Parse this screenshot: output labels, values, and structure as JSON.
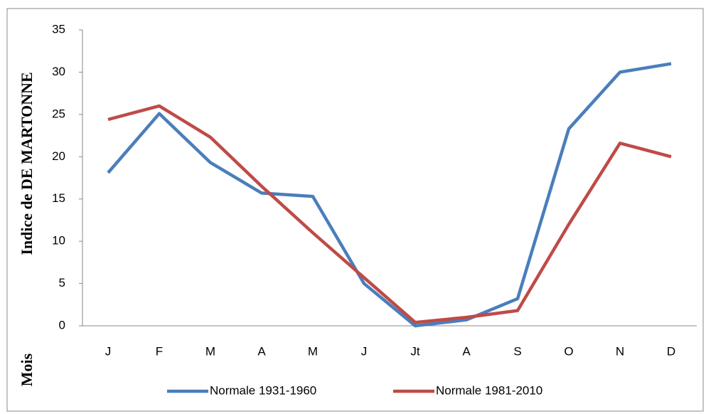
{
  "chart_data": {
    "type": "line",
    "y_label": "Indice de  DE MARTONNE",
    "x_label": "Mois",
    "categories": [
      "J",
      "F",
      "M",
      "A",
      "M",
      "J",
      "Jt",
      "A",
      "S",
      "O",
      "N",
      "D"
    ],
    "series": [
      {
        "name": "Normale 1931-1960",
        "color": "#4a7ebb",
        "values": [
          18.1,
          25.1,
          19.3,
          15.7,
          15.3,
          5.0,
          0.0,
          0.7,
          3.2,
          23.3,
          30.0,
          31.0
        ]
      },
      {
        "name": "Normale 1981-2010",
        "color": "#be4b48",
        "values": [
          24.4,
          26.0,
          22.3,
          16.5,
          11.0,
          5.7,
          0.4,
          1.0,
          1.8,
          12.0,
          21.6,
          20.0
        ]
      }
    ],
    "ylim": [
      0,
      35
    ],
    "yticks": [
      0,
      5,
      10,
      15,
      20,
      25,
      30,
      35
    ],
    "grid": false,
    "legend": "bottom"
  }
}
